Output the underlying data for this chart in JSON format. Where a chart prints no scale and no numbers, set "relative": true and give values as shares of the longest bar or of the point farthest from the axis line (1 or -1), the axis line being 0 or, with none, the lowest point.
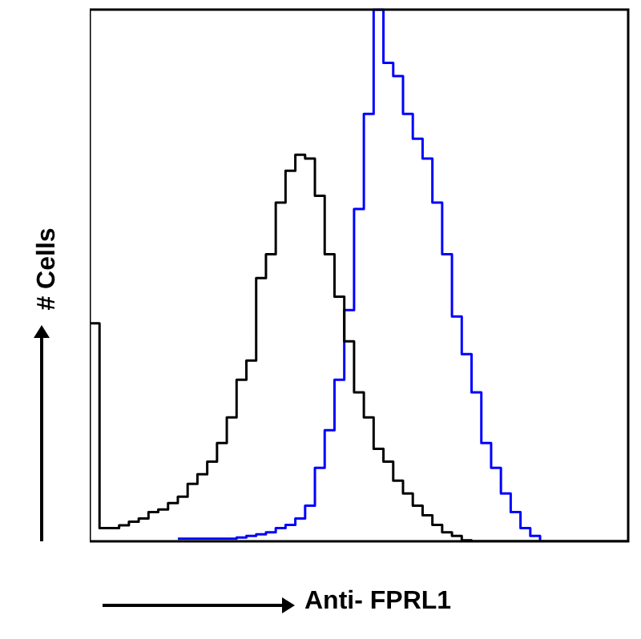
{
  "chart_data": {
    "type": "step",
    "xlabel": "Anti- FPRL1",
    "ylabel": "# Cells",
    "relative": true,
    "categories": [
      null,
      null,
      null,
      null,
      null,
      null,
      null,
      null,
      null,
      null,
      null,
      null,
      null,
      null,
      null,
      null,
      null,
      null,
      null,
      null,
      null,
      null,
      null,
      null,
      null,
      null,
      null,
      null,
      null,
      null,
      null,
      null,
      null,
      null,
      null,
      null,
      null,
      null,
      null,
      null,
      null,
      null,
      null,
      null,
      null,
      null,
      null,
      null,
      null,
      null,
      null,
      null,
      null,
      null,
      null,
      null
    ],
    "series": [
      {
        "color": "#000000",
        "values": [
          0.41,
          0.025,
          0.025,
          0.03,
          0.037,
          0.043,
          0.055,
          0.06,
          0.072,
          0.084,
          0.108,
          0.126,
          0.15,
          0.185,
          0.233,
          0.304,
          0.34,
          0.495,
          0.54,
          0.637,
          0.697,
          0.727,
          0.72,
          0.65,
          0.54,
          0.46,
          0.376,
          0.28,
          0.233,
          0.174,
          0.15,
          0.114,
          0.09,
          0.067,
          0.049,
          0.031,
          0.017,
          0.01,
          0.002,
          0,
          0,
          0,
          0,
          0,
          0,
          0,
          0,
          0,
          0,
          0,
          0,
          0,
          0,
          0,
          0,
          0
        ]
      },
      {
        "color": "#0000ff",
        "values": [
          null,
          null,
          null,
          null,
          null,
          null,
          null,
          null,
          null,
          0.005,
          0.005,
          0.005,
          0.005,
          0.005,
          0.005,
          0.007,
          0.01,
          0.013,
          0.017,
          0.025,
          0.031,
          0.043,
          0.067,
          0.138,
          0.209,
          0.304,
          0.435,
          0.625,
          0.804,
          1.0,
          0.9,
          0.875,
          0.804,
          0.757,
          0.72,
          0.637,
          0.54,
          0.423,
          0.352,
          0.28,
          0.185,
          0.138,
          0.09,
          0.055,
          0.025,
          0.01,
          0.001,
          null,
          null,
          null,
          null,
          null,
          null,
          null,
          null,
          null
        ]
      }
    ]
  }
}
